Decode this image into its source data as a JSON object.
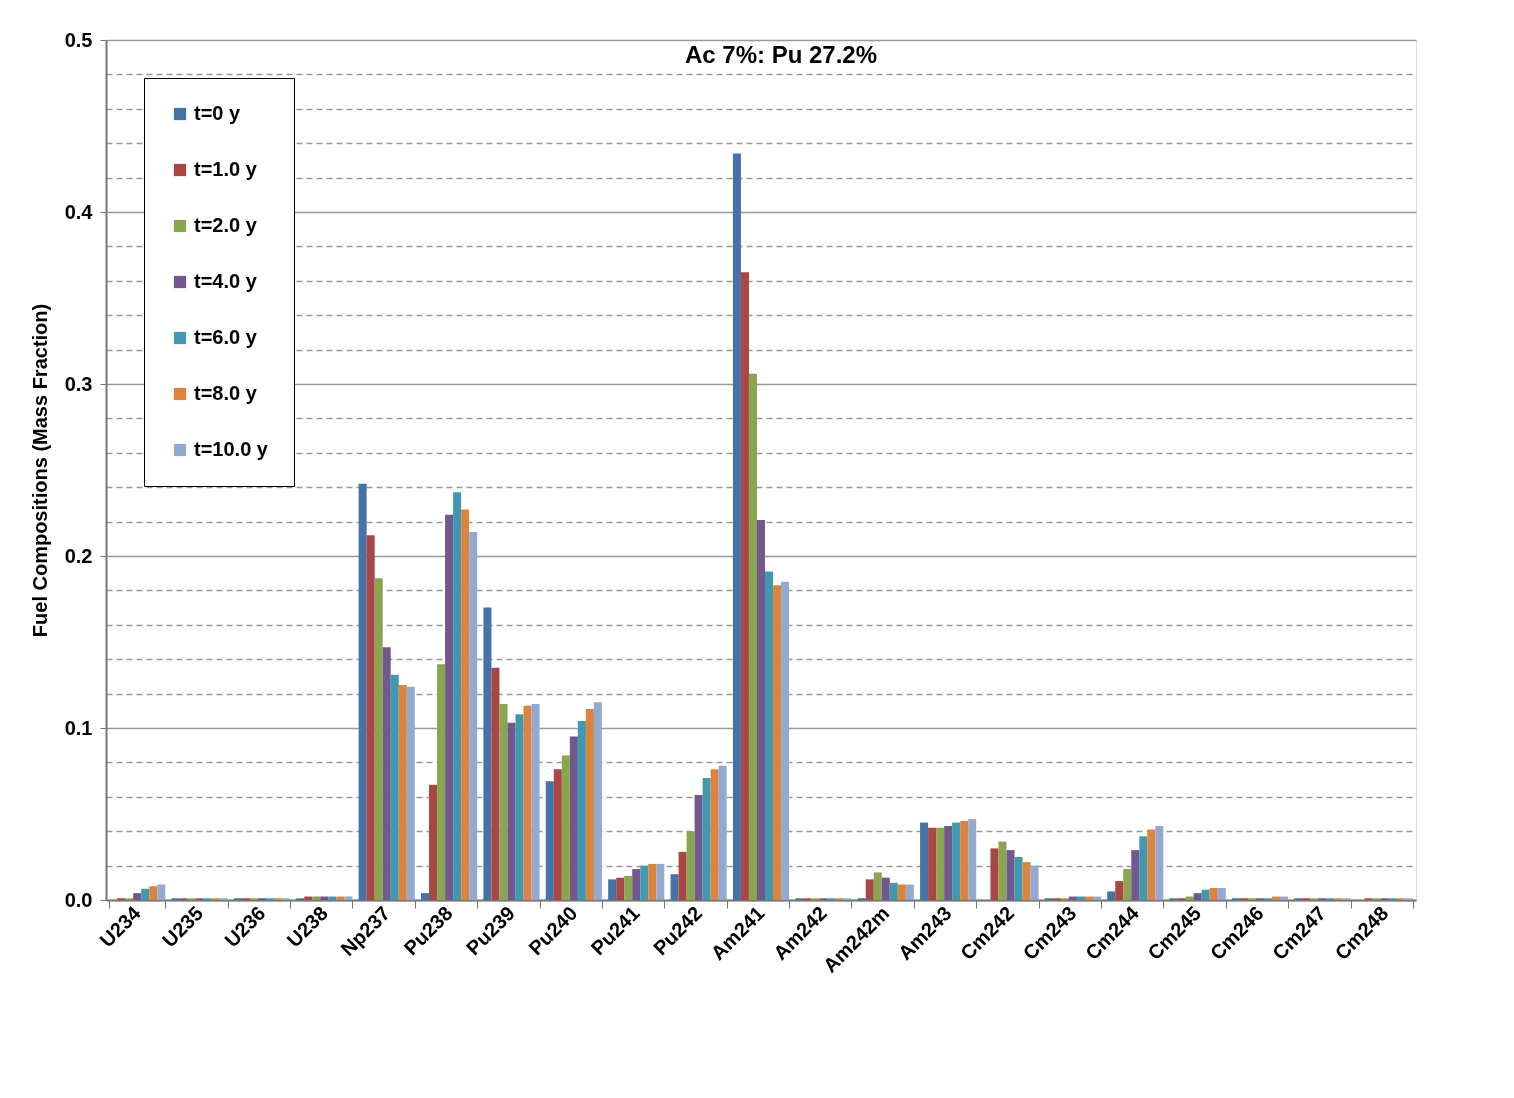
{
  "chart_data": {
    "type": "bar",
    "title": "Ac 7%: Pu 27.2%",
    "ylabel": "Fuel Compositions (Mass Fraction)",
    "categories": [
      "U234",
      "U235",
      "U236",
      "U238",
      "Np237",
      "Pu238",
      "Pu239",
      "Pu240",
      "Pu241",
      "Pu242",
      "Am241",
      "Am242",
      "Am242m",
      "Am243",
      "Cm242",
      "Cm243",
      "Cm244",
      "Cm245",
      "Cm246",
      "Cm247",
      "Cm248"
    ],
    "series": [
      {
        "name": "t=0 y",
        "color": "#4572a7",
        "values": [
          0,
          0.001,
          0.001,
          0.001,
          0.242,
          0.004,
          0.17,
          0.069,
          0.012,
          0.015,
          0.434,
          0.001,
          0.001,
          0.045,
          0,
          0.001,
          0.005,
          0.001,
          0.001,
          0.001,
          0
        ]
      },
      {
        "name": "t=1.0 y",
        "color": "#aa4643",
        "values": [
          0.001,
          0.001,
          0.001,
          0.002,
          0.212,
          0.067,
          0.135,
          0.076,
          0.013,
          0.028,
          0.365,
          0.001,
          0.012,
          0.042,
          0.03,
          0.001,
          0.011,
          0.001,
          0.001,
          0.001,
          0.001
        ]
      },
      {
        "name": "t=2.0 y",
        "color": "#89a54e",
        "values": [
          0.001,
          0.001,
          0.001,
          0.002,
          0.187,
          0.137,
          0.114,
          0.084,
          0.014,
          0.04,
          0.306,
          0.001,
          0.016,
          0.042,
          0.034,
          0.001,
          0.018,
          0.002,
          0.001,
          0.001,
          0.001
        ]
      },
      {
        "name": "t=4.0 y",
        "color": "#71588f",
        "values": [
          0.004,
          0.001,
          0.001,
          0.002,
          0.147,
          0.224,
          0.103,
          0.095,
          0.018,
          0.061,
          0.221,
          0.001,
          0.013,
          0.043,
          0.029,
          0.002,
          0.029,
          0.004,
          0.001,
          0.001,
          0.001
        ]
      },
      {
        "name": "t=6.0 y",
        "color": "#4198af",
        "values": [
          0.0065,
          0.001,
          0.001,
          0.002,
          0.131,
          0.237,
          0.108,
          0.104,
          0.02,
          0.071,
          0.191,
          0.001,
          0.01,
          0.045,
          0.025,
          0.002,
          0.037,
          0.006,
          0.001,
          0.001,
          0.001
        ]
      },
      {
        "name": "t=8.0 y",
        "color": "#db843d",
        "values": [
          0.008,
          0.001,
          0.001,
          0.002,
          0.125,
          0.227,
          0.113,
          0.111,
          0.021,
          0.076,
          0.183,
          0.001,
          0.009,
          0.046,
          0.022,
          0.002,
          0.041,
          0.007,
          0.002,
          0.001,
          0.001
        ]
      },
      {
        "name": "t=10.0 y",
        "color": "#93a9cf",
        "values": [
          0.009,
          0.001,
          0.001,
          0.002,
          0.124,
          0.214,
          0.114,
          0.115,
          0.021,
          0.078,
          0.185,
          0.001,
          0.009,
          0.047,
          0.02,
          0.002,
          0.043,
          0.007,
          0.002,
          0.001,
          0.001
        ]
      }
    ],
    "ylim": [
      0,
      0.5
    ],
    "yticks": [
      {
        "value": 0,
        "label": "0.0"
      },
      {
        "value": 0.02,
        "label": null
      },
      {
        "value": 0.04,
        "label": null
      },
      {
        "value": 0.06,
        "label": null
      },
      {
        "value": 0.08,
        "label": null
      },
      {
        "value": 0.1,
        "label": "0.1"
      },
      {
        "value": 0.12,
        "label": null
      },
      {
        "value": 0.14,
        "label": null
      },
      {
        "value": 0.16,
        "label": null
      },
      {
        "value": 0.18,
        "label": null
      },
      {
        "value": 0.2,
        "label": "0.2"
      },
      {
        "value": 0.22,
        "label": null
      },
      {
        "value": 0.24,
        "label": null
      },
      {
        "value": 0.26,
        "label": null
      },
      {
        "value": 0.28,
        "label": null
      },
      {
        "value": 0.3,
        "label": "0.3"
      },
      {
        "value": 0.32,
        "label": null
      },
      {
        "value": 0.34,
        "label": null
      },
      {
        "value": 0.36,
        "label": null
      },
      {
        "value": 0.38,
        "label": null
      },
      {
        "value": 0.4,
        "label": "0.4"
      },
      {
        "value": 0.42,
        "label": null
      },
      {
        "value": 0.44,
        "label": null
      },
      {
        "value": 0.46,
        "label": null
      },
      {
        "value": 0.48,
        "label": null
      },
      {
        "value": 0.5,
        "label": "0.5"
      }
    ],
    "grid": "y",
    "legend": "top left"
  }
}
